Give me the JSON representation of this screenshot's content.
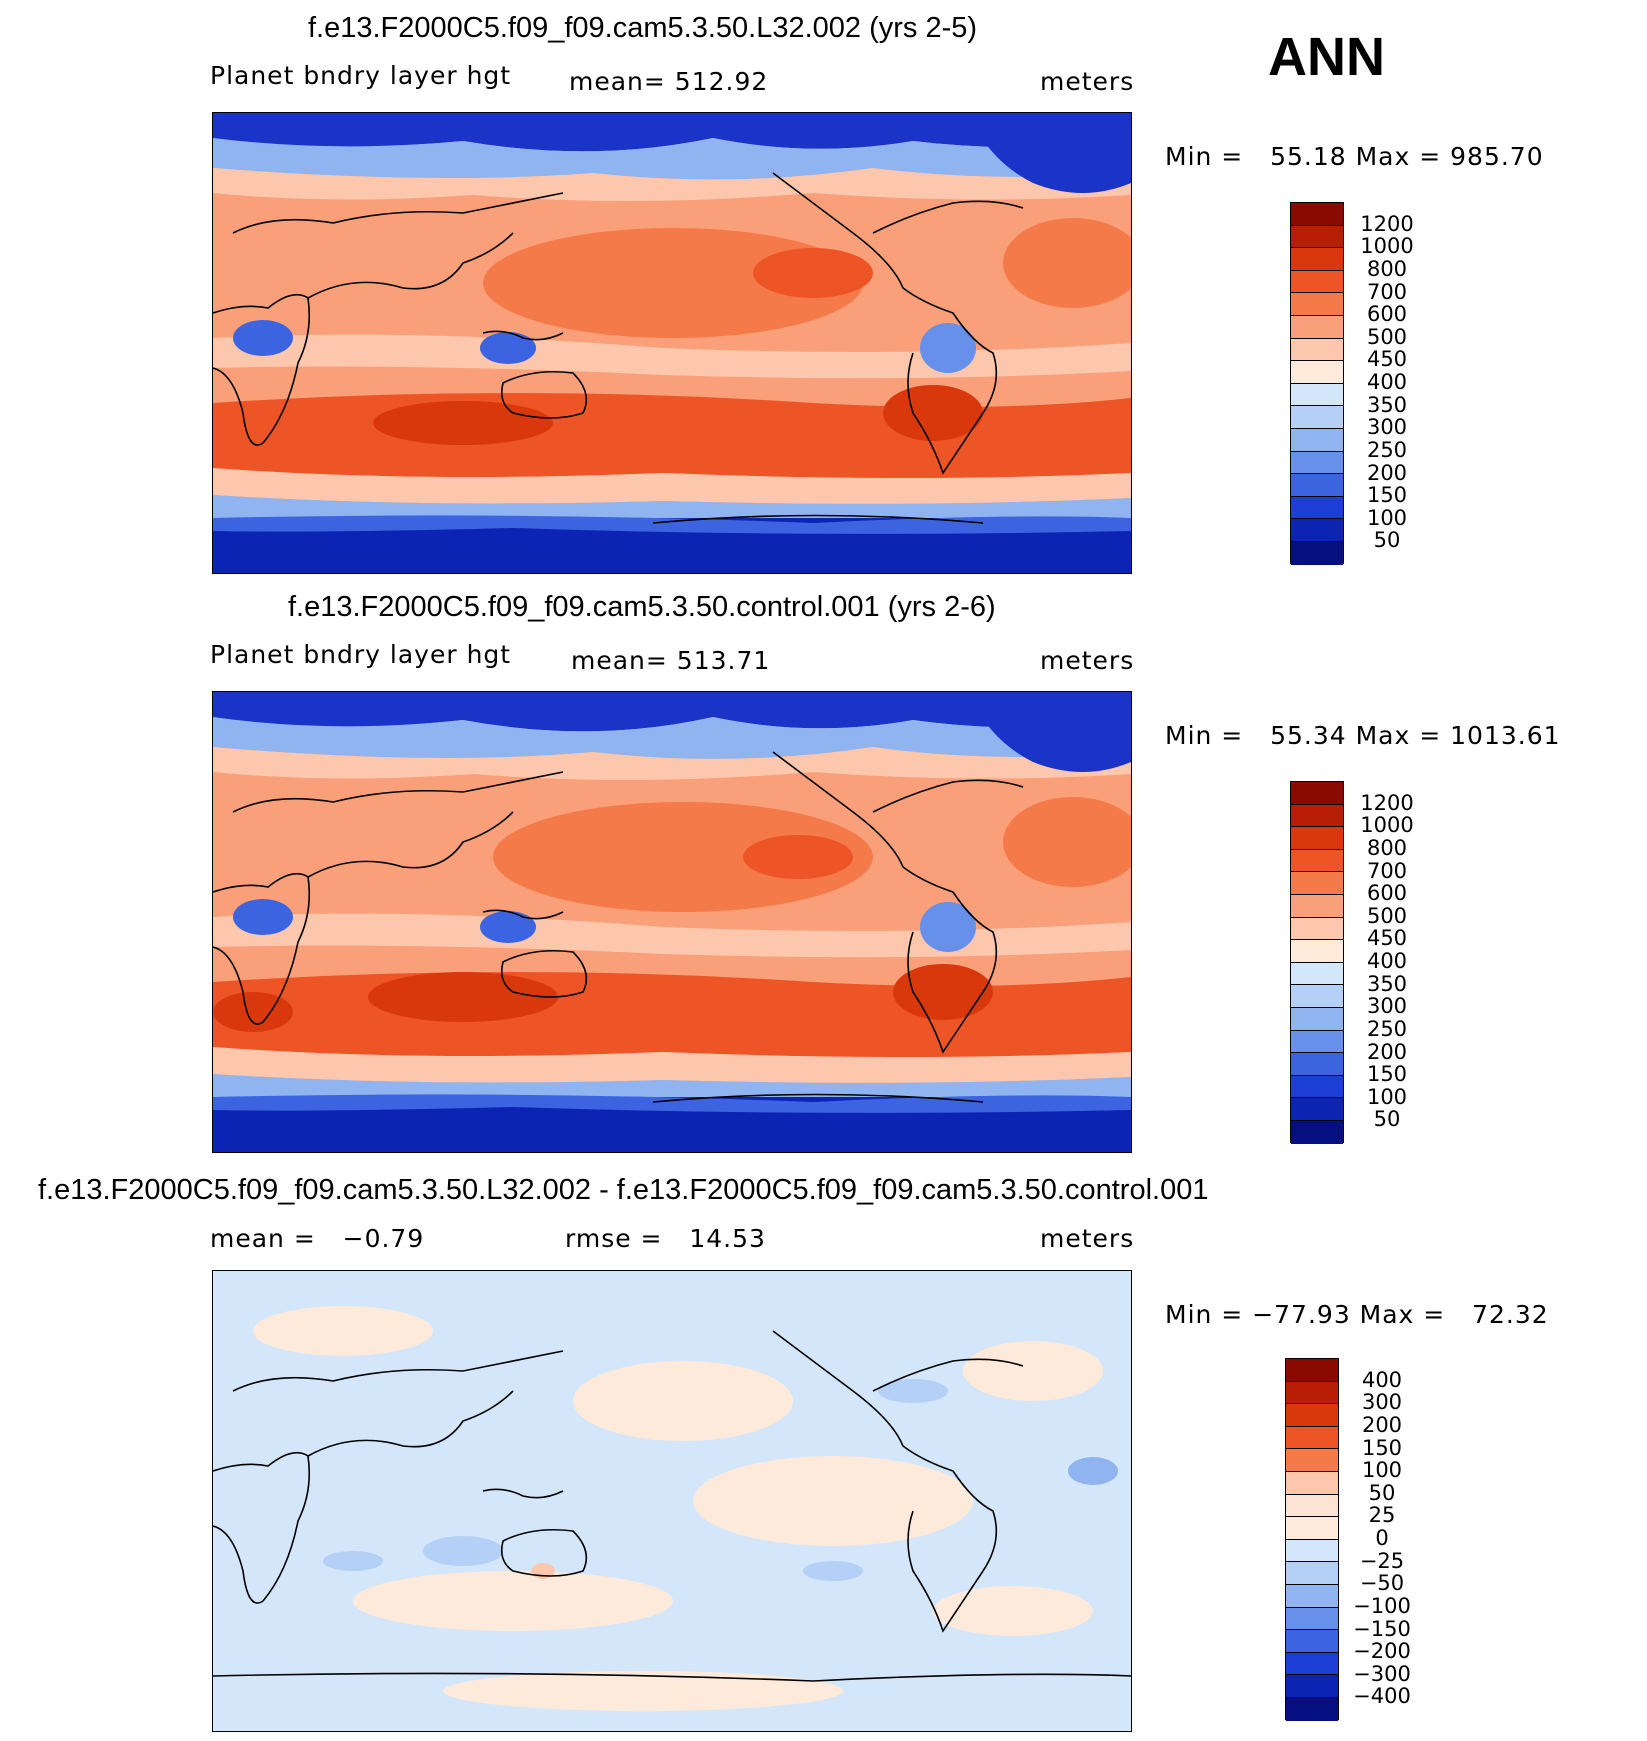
{
  "season": "ANN",
  "panels": [
    {
      "title": "f.e13.F2000C5.f09_f09.cam5.3.50.L32.002 (yrs 2-5)",
      "left_label": "Planet bndry layer hgt",
      "center_label": "mean= 512.92",
      "right_label": "meters",
      "minmax": "Min =   55.18 Max = 985.70",
      "levels": [
        "1200",
        "1000",
        "800",
        "700",
        "600",
        "500",
        "450",
        "400",
        "350",
        "300",
        "250",
        "200",
        "150",
        "100",
        "50"
      ]
    },
    {
      "title": "f.e13.F2000C5.f09_f09.cam5.3.50.control.001 (yrs 2-6)",
      "left_label": "Planet bndry layer hgt",
      "center_label": "mean= 513.71",
      "right_label": "meters",
      "minmax": "Min =   55.34 Max = 1013.61",
      "levels": [
        "1200",
        "1000",
        "800",
        "700",
        "600",
        "500",
        "450",
        "400",
        "350",
        "300",
        "250",
        "200",
        "150",
        "100",
        "50"
      ]
    },
    {
      "title": "f.e13.F2000C5.f09_f09.cam5.3.50.L32.002 - f.e13.F2000C5.f09_f09.cam5.3.50.control.001",
      "left_label": "mean =   −0.79",
      "center_label": "rmse =   14.53",
      "right_label": "meters",
      "minmax": "Min = −77.93 Max =   72.32",
      "levels": [
        "400",
        "300",
        "200",
        "150",
        "100",
        "50",
        "25",
        "0",
        "−25",
        "−50",
        "−100",
        "−150",
        "−200",
        "−300",
        "−400"
      ]
    }
  ],
  "colors": {
    "palette": [
      "#8a0a00",
      "#b81e05",
      "#d8380c",
      "#ee5526",
      "#f57a4a",
      "#f9a07a",
      "#fcc7ac",
      "#feeadb",
      "#d4e6fa",
      "#b4d0f6",
      "#90b4f0",
      "#6690ea",
      "#3c64e0",
      "#1c3ed4",
      "#0c24b4",
      "#050f80"
    ],
    "antarctic": "#0c24b4",
    "arctic": "#1a34c8",
    "coast": "#000000"
  },
  "chart_data": [
    {
      "type": "heatmap",
      "title": "f.e13.F2000C5.f09_f09.cam5.3.50.L32.002 (yrs 2-5)",
      "variable": "Planet bndry layer hgt",
      "units": "meters",
      "mean": 512.92,
      "min": 55.18,
      "max": 985.7,
      "contour_levels": [
        50,
        100,
        150,
        200,
        250,
        300,
        350,
        400,
        450,
        500,
        600,
        700,
        800,
        1000,
        1200
      ]
    },
    {
      "type": "heatmap",
      "title": "f.e13.F2000C5.f09_f09.cam5.3.50.control.001 (yrs 2-6)",
      "variable": "Planet bndry layer hgt",
      "units": "meters",
      "mean": 513.71,
      "min": 55.34,
      "max": 1013.61,
      "contour_levels": [
        50,
        100,
        150,
        200,
        250,
        300,
        350,
        400,
        450,
        500,
        600,
        700,
        800,
        1000,
        1200
      ]
    },
    {
      "type": "heatmap",
      "title": "f.e13.F2000C5.f09_f09.cam5.3.50.L32.002 - f.e13.F2000C5.f09_f09.cam5.3.50.control.001",
      "units": "meters",
      "mean": -0.79,
      "rmse": 14.53,
      "min": -77.93,
      "max": 72.32,
      "contour_levels": [
        -400,
        -300,
        -200,
        -150,
        -100,
        -50,
        -25,
        0,
        25,
        50,
        100,
        150,
        200,
        300,
        400
      ]
    }
  ]
}
